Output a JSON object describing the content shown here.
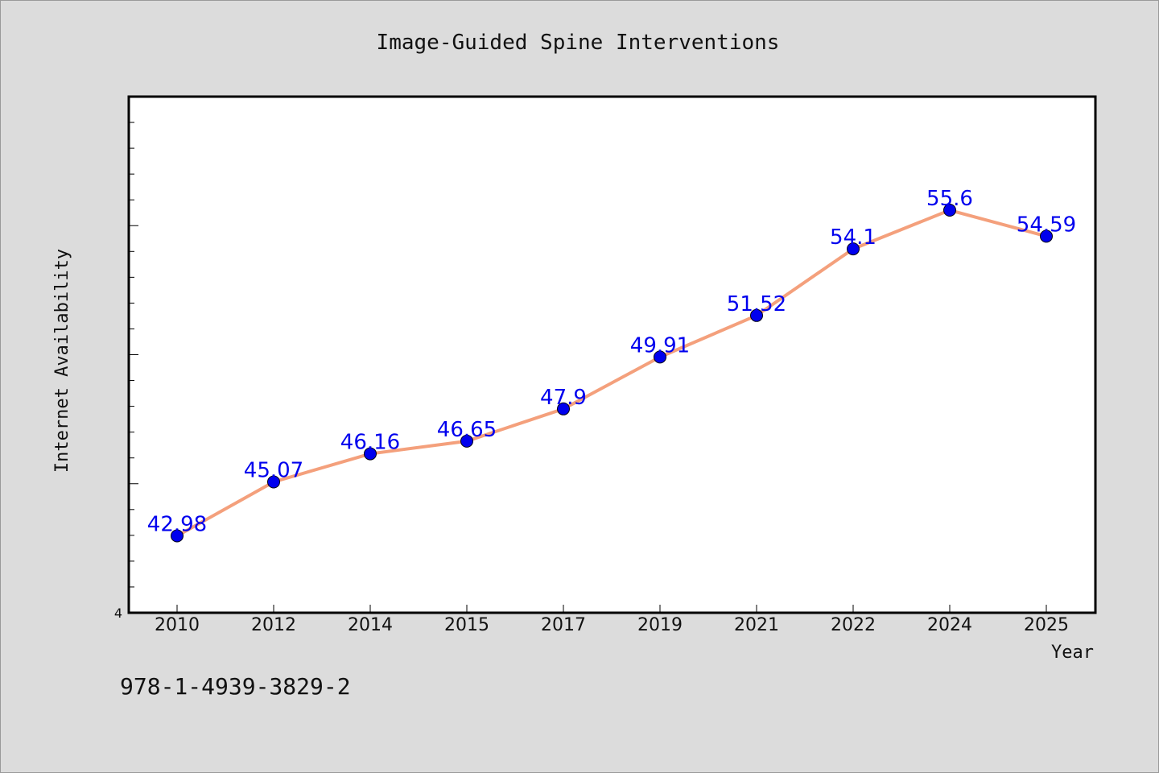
{
  "chart_data": {
    "type": "line",
    "title": "Image-Guided Spine Interventions",
    "xlabel": "Year",
    "ylabel": "Internet Availability",
    "categories": [
      "2010",
      "2012",
      "2014",
      "2015",
      "2017",
      "2019",
      "2021",
      "2022",
      "2024",
      "2025"
    ],
    "series": [
      {
        "values": [
          42.98,
          45.07,
          46.16,
          46.65,
          47.9,
          49.91,
          51.52,
          54.1,
          55.6,
          54.59
        ],
        "labels": [
          "42.98",
          "45.07",
          "46.16",
          "46.65",
          "47.9",
          "49.91",
          "51.52",
          "54.1",
          "55.6",
          "54.59"
        ],
        "line_color": "#f4a07c",
        "marker_color": "#0000ee"
      }
    ],
    "ylim": [
      40,
      60
    ],
    "yticks_labeled": [
      "4"
    ],
    "grid": false,
    "legend": "none"
  },
  "footer": {
    "isbn": "978-1-4939-3829-2"
  },
  "colors": {
    "background": "#dcdcdc",
    "plot_background": "#ffffff",
    "data_label": "#0000ee"
  }
}
